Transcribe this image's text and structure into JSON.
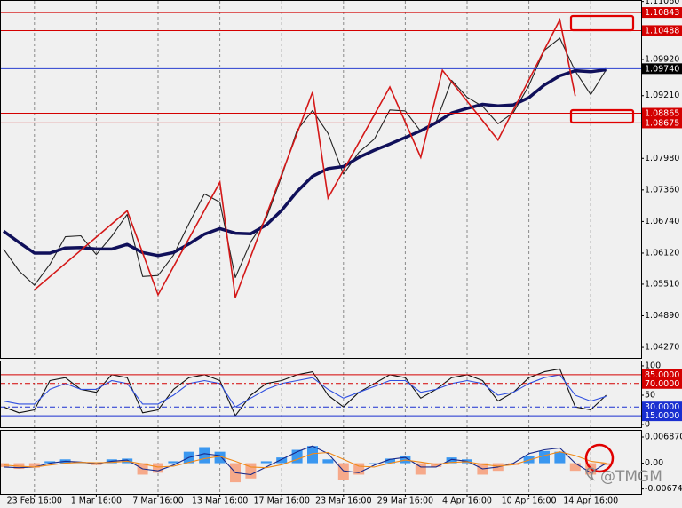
{
  "chart_data": [
    {
      "type": "line",
      "categories": [
        null,
        null,
        "23 Feb 16:00",
        null,
        null,
        null,
        "1 Mar 16:00",
        null,
        null,
        null,
        "7 Mar 16:00",
        null,
        null,
        null,
        "13 Mar 16:00",
        null,
        null,
        null,
        "17 Mar 16:00",
        null,
        null,
        null,
        "23 Mar 16:00",
        null,
        null,
        null,
        "29 Mar 16:00",
        null,
        null,
        null,
        "4 Apr 16:00",
        null,
        null,
        null,
        "10 Apr 16:00",
        null,
        null,
        null,
        "14 Apr 16:00",
        null
      ],
      "grid": "x",
      "ylim": [
        1.04062,
        1.11071
      ],
      "yticks": [
        {
          "value": 1.1106,
          "label": "1.11060"
        },
        {
          "value": 1.10843,
          "label": "1.10843",
          "line_color": "#d40000"
        },
        {
          "value": 1.10488,
          "label": "1.10488",
          "line_color": "#d40000"
        },
        {
          "value": 1.0992,
          "label": "1.09920"
        },
        {
          "value": 1.0974,
          "label": "1.09740",
          "line_color": "#000000",
          "line_stroke": "#2a3fd0"
        },
        {
          "value": 1.0921,
          "label": "1.09210"
        },
        {
          "value": 1.08865,
          "label": "1.08865",
          "line_color": "#d40000"
        },
        {
          "value": 1.08675,
          "label": "1.08675",
          "line_color": "#d40000"
        },
        {
          "value": 1.0798,
          "label": "1.07980"
        },
        {
          "value": 1.0736,
          "label": "1.07360"
        },
        {
          "value": 1.0674,
          "label": "1.06740"
        },
        {
          "value": 1.0612,
          "label": "1.06120"
        },
        {
          "value": 1.0551,
          "label": "1.05510"
        },
        {
          "value": 1.0489,
          "label": "1.04890"
        },
        {
          "value": 1.0427,
          "label": "1.04270"
        }
      ],
      "series": [
        {
          "color": "#222222",
          "values": [
            1.062,
            1.0577,
            1.0549,
            1.059,
            1.0644,
            1.0646,
            1.0609,
            1.0645,
            1.0688,
            1.0566,
            1.0568,
            1.0608,
            1.067,
            1.0728,
            1.0712,
            1.0564,
            1.0634,
            1.068,
            1.0763,
            1.0853,
            1.0892,
            1.0847,
            1.0767,
            1.081,
            1.0836,
            1.0893,
            1.0891,
            1.0851,
            1.087,
            1.0951,
            1.0918,
            1.09,
            1.0866,
            1.0888,
            1.0941,
            1.101,
            1.1034,
            1.0969,
            1.0923,
            1.0972
          ]
        },
        {
          "color": "#10105a",
          "values": [
            1.0655,
            1.0633,
            1.0612,
            1.0612,
            1.0622,
            1.0623,
            1.062,
            1.062,
            1.0629,
            1.0613,
            1.0607,
            1.0613,
            1.063,
            1.0649,
            1.066,
            1.0651,
            1.065,
            1.0667,
            1.0696,
            1.0733,
            1.0763,
            1.0778,
            1.0782,
            1.08,
            1.0814,
            1.0826,
            1.0839,
            1.0852,
            1.0868,
            1.0887,
            1.0896,
            1.0904,
            1.0901,
            1.0903,
            1.0917,
            1.0942,
            1.096,
            1.097,
            1.0968,
            1.0972
          ]
        }
      ],
      "zigzag": {
        "color": "#d41818",
        "x": [
          2,
          8,
          10,
          14,
          15,
          20,
          21,
          25,
          27,
          28.4,
          32,
          36,
          37
        ],
        "values": [
          1.054,
          1.0695,
          1.053,
          1.0751,
          1.0525,
          1.0928,
          1.072,
          1.0938,
          1.08,
          1.0971,
          1.0834,
          1.107,
          1.092
        ]
      }
    },
    {
      "type": "line",
      "ylim": [
        -4.5,
        107.5
      ],
      "yticks": [
        100,
        {
          "value": 85,
          "label": "85.0000",
          "line_color": "#d40000"
        },
        {
          "value": 70,
          "label": "70.0000",
          "line_color": "#d40000",
          "line_dash": true
        },
        50,
        {
          "value": 30,
          "label": "30.0000",
          "line_color": "#1a2fd0",
          "line_dash": true
        },
        {
          "value": 15,
          "label": "15.0000",
          "line_color": "#1a2fd0"
        },
        0
      ],
      "series": [
        {
          "color": "#111111",
          "values": [
            30,
            20,
            25,
            75,
            80,
            60,
            55,
            85,
            80,
            20,
            25,
            60,
            80,
            85,
            75,
            15,
            50,
            70,
            75,
            85,
            90,
            50,
            30,
            55,
            70,
            85,
            80,
            45,
            60,
            80,
            85,
            75,
            40,
            55,
            80,
            90,
            95,
            30,
            25,
            50
          ]
        },
        {
          "color": "#3050e0",
          "values": [
            40,
            35,
            35,
            60,
            70,
            60,
            60,
            75,
            70,
            35,
            35,
            50,
            70,
            75,
            70,
            30,
            45,
            60,
            70,
            75,
            80,
            60,
            45,
            55,
            65,
            75,
            75,
            55,
            60,
            70,
            75,
            70,
            50,
            55,
            70,
            80,
            85,
            50,
            40,
            48
          ]
        }
      ]
    },
    {
      "type": "macd",
      "ylim": [
        -0.008,
        0.0085
      ],
      "yticks": [
        {
          "value": 0.0068709,
          "label": "0.0068709"
        },
        {
          "value": 0,
          "label": "0.00"
        },
        {
          "value": -0.0067446,
          "label": "-0.0067446"
        }
      ],
      "histogram": {
        "color": "#3a97f0",
        "negative_color": "#f6a98a",
        "values": [
          -0.001,
          -0.0015,
          -0.0012,
          0.0005,
          0.001,
          0.0003,
          -0.0005,
          0.001,
          0.0012,
          -0.003,
          -0.0025,
          0.0005,
          0.003,
          0.0042,
          0.003,
          -0.005,
          -0.004,
          0.0005,
          0.0015,
          0.0035,
          0.0045,
          0.001,
          -0.0045,
          -0.003,
          0.0,
          0.0012,
          0.002,
          -0.003,
          -0.001,
          0.0015,
          0.001,
          -0.003,
          -0.002,
          -0.0005,
          0.002,
          0.0032,
          0.003,
          -0.002,
          -0.003,
          -0.0005
        ]
      },
      "series": [
        {
          "color": "#1a2a8a",
          "values": [
            -0.001,
            -0.0012,
            -0.001,
            0.0,
            0.0005,
            0.0003,
            -0.0002,
            0.0005,
            0.0008,
            -0.0015,
            -0.002,
            -0.0005,
            0.0015,
            0.0025,
            0.002,
            -0.0025,
            -0.003,
            -0.001,
            0.001,
            0.003,
            0.0045,
            0.0025,
            -0.002,
            -0.0025,
            -0.0005,
            0.001,
            0.0015,
            -0.001,
            -0.001,
            0.001,
            0.0005,
            -0.0015,
            -0.001,
            0.0,
            0.0025,
            0.0035,
            0.004,
            0.0,
            -0.0025,
            0.0
          ]
        },
        {
          "color": "#f08a1a",
          "values": [
            -0.0005,
            -0.0008,
            -0.001,
            -0.0005,
            0.0,
            0.0002,
            0.0001,
            0.0002,
            0.0005,
            -0.0002,
            -0.001,
            -0.0008,
            0.0002,
            0.0012,
            0.0018,
            0.0005,
            -0.001,
            -0.0012,
            -0.0004,
            0.001,
            0.0025,
            0.0028,
            0.001,
            -0.0008,
            -0.001,
            0.0,
            0.0008,
            0.0003,
            -0.0003,
            0.0002,
            0.0004,
            -0.0003,
            -0.0008,
            -0.0004,
            0.0008,
            0.002,
            0.003,
            0.002,
            0.0005,
            0.0
          ]
        }
      ]
    }
  ],
  "watermark": "@TMGM"
}
